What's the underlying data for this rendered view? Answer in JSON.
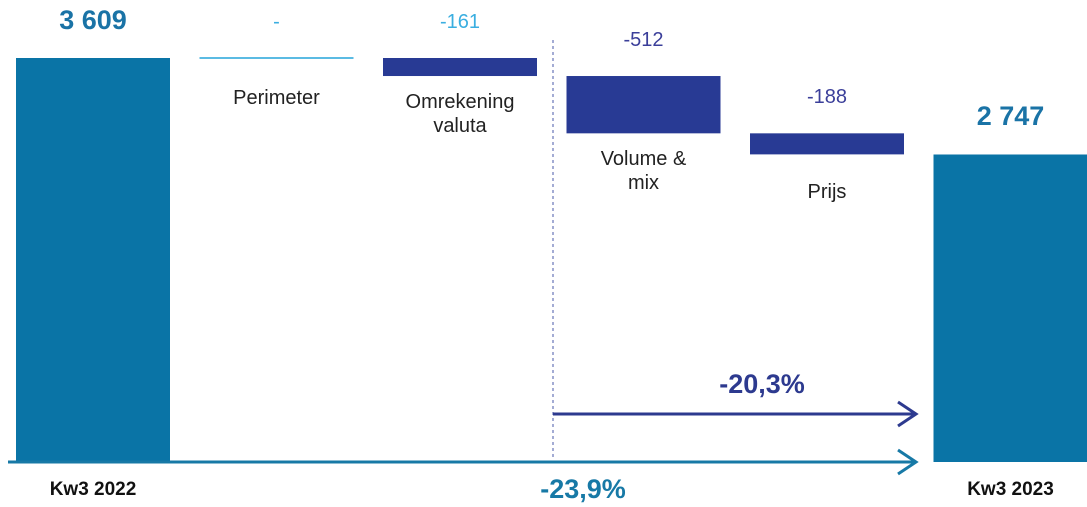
{
  "chart_data": {
    "type": "waterfall",
    "categories": [
      "Kw3 2022",
      "Perimeter",
      "Omrekening valuta",
      "Volume & mix",
      "Prijs",
      "Kw3 2023"
    ],
    "kinds": [
      "total",
      "delta",
      "delta",
      "delta",
      "delta",
      "total"
    ],
    "values": [
      3609,
      0,
      -161,
      -512,
      -188,
      2747
    ],
    "value_labels": [
      "3 609",
      "-",
      "-161",
      "-512",
      "-188",
      "2 747"
    ],
    "colors": [
      "#0a74a6",
      "#5bbbe3",
      "#283a94",
      "#283a94",
      "#283a94",
      "#0a74a6"
    ],
    "label_colors": [
      "#1a73a6",
      "#3aaee0",
      "#3aaee0",
      "#3b3f9a",
      "#3b3f9a",
      "#1a73a6"
    ],
    "annotations": [
      {
        "text": "-20,3%",
        "color": "#2d3a8f"
      },
      {
        "text": "-23,9%",
        "color": "#1779a6"
      }
    ]
  }
}
